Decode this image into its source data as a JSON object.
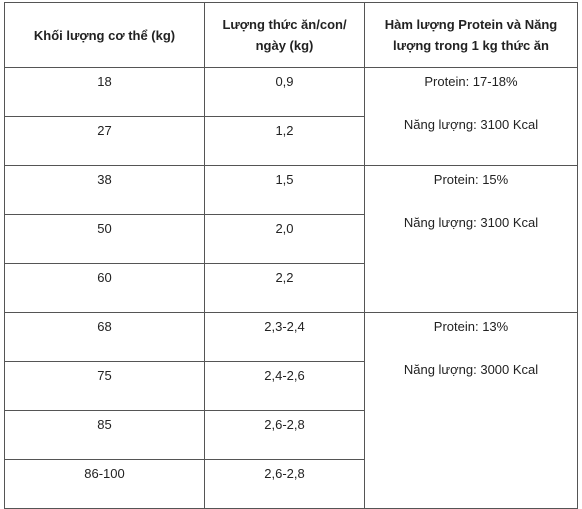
{
  "table": {
    "header": [
      "Khối lượng cơ thể (kg)",
      "Lượng thức ăn/con/ ngày (kg)",
      "Hàm lượng Protein và Năng lượng trong 1 kg thức ăn"
    ],
    "groups": [
      {
        "rows": [
          [
            "18",
            "0,9"
          ],
          [
            "27",
            "1,2"
          ]
        ],
        "protein": "Protein: 17-18%",
        "energy": "Năng lượng: 3100 Kcal"
      },
      {
        "rows": [
          [
            "38",
            "1,5"
          ],
          [
            "50",
            "2,0"
          ],
          [
            "60",
            "2,2"
          ]
        ],
        "protein": "Protein: 15%",
        "energy": "Năng lượng: 3100 Kcal"
      },
      {
        "rows": [
          [
            "68",
            "2,3-2,4"
          ],
          [
            "75",
            "2,4-2,6"
          ],
          [
            "85",
            "2,6-2,8"
          ],
          [
            "86-100",
            "2,6-2,8"
          ]
        ],
        "protein": "Protein: 13%",
        "energy": "Năng lượng: 3000 Kcal"
      }
    ]
  }
}
